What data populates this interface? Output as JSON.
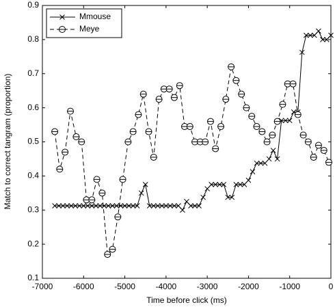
{
  "chart_data": {
    "type": "line",
    "x_label": "Time before click (ms)",
    "y_label": "Match to correct tangram (proportion)",
    "xlim": [
      -7000,
      0
    ],
    "xticks": [
      -7000,
      -6000,
      -5000,
      -4000,
      -3000,
      -2000,
      -1000,
      0
    ],
    "ylim": [
      0.1,
      0.9
    ],
    "yticks": [
      0.1,
      0.2,
      0.3,
      0.4,
      0.5,
      0.6,
      0.7,
      0.8,
      0.9
    ],
    "grid": false,
    "legend": "upper left",
    "series": [
      {
        "name": "Mmouse",
        "color": "#000000",
        "marker": "x",
        "dash": "solid",
        "x": [
          -6700,
          -6600,
          -6500,
          -6400,
          -6300,
          -6200,
          -6100,
          -6000,
          -5900,
          -5800,
          -5700,
          -5600,
          -5500,
          -5400,
          -5300,
          -5200,
          -5100,
          -5000,
          -4900,
          -4800,
          -4700,
          -4600,
          -4500,
          -4400,
          -4300,
          -4200,
          -4100,
          -4000,
          -3900,
          -3800,
          -3700,
          -3600,
          -3500,
          -3400,
          -3300,
          -3200,
          -3100,
          -3000,
          -2900,
          -2800,
          -2700,
          -2600,
          -2500,
          -2400,
          -2300,
          -2200,
          -2100,
          -2000,
          -1900,
          -1800,
          -1700,
          -1600,
          -1500,
          -1400,
          -1300,
          -1200,
          -1100,
          -1000,
          -900,
          -800,
          -700,
          -600,
          -500,
          -400,
          -300,
          -200,
          -100,
          0
        ],
        "values": [
          0.3125,
          0.3125,
          0.3125,
          0.3125,
          0.3125,
          0.3125,
          0.3125,
          0.3125,
          0.3125,
          0.3125,
          0.3125,
          0.3125,
          0.3125,
          0.3125,
          0.3125,
          0.3125,
          0.3125,
          0.3125,
          0.3125,
          0.3125,
          0.3125,
          0.35,
          0.375,
          0.3125,
          0.3125,
          0.3125,
          0.3125,
          0.3125,
          0.3125,
          0.3125,
          0.3125,
          0.3,
          0.325,
          0.3125,
          0.3125,
          0.3125,
          0.3375,
          0.3625,
          0.375,
          0.375,
          0.375,
          0.375,
          0.3375,
          0.3375,
          0.375,
          0.375,
          0.375,
          0.3875,
          0.4125,
          0.4375,
          0.4375,
          0.4375,
          0.45,
          0.475,
          0.45,
          0.5625,
          0.5625,
          0.5625,
          0.5875,
          0.5875,
          0.7625,
          0.8125,
          0.8125,
          0.8125,
          0.825,
          0.8,
          0.8,
          0.8125
        ]
      },
      {
        "name": "Meye",
        "color": "#000000",
        "marker": "o",
        "dash": "dashed",
        "x": [
          -6700,
          -6580,
          -6450,
          -6320,
          -6180,
          -6050,
          -5930,
          -5800,
          -5680,
          -5550,
          -5420,
          -5300,
          -5170,
          -5050,
          -4920,
          -4800,
          -4670,
          -4550,
          -4420,
          -4300,
          -4170,
          -4050,
          -3920,
          -3800,
          -3670,
          -3550,
          -3420,
          -3300,
          -3170,
          -3050,
          -2920,
          -2800,
          -2670,
          -2550,
          -2420,
          -2300,
          -2170,
          -2050,
          -1920,
          -1800,
          -1670,
          -1550,
          -1420,
          -1300,
          -1170,
          -1050,
          -920,
          -800,
          -670,
          -550,
          -420,
          -300,
          -170,
          -50
        ],
        "values": [
          0.53,
          0.42,
          0.47,
          0.59,
          0.515,
          0.5,
          0.33,
          0.33,
          0.39,
          0.35,
          0.17,
          0.185,
          0.28,
          0.39,
          0.5,
          0.53,
          0.58,
          0.64,
          0.53,
          0.455,
          0.625,
          0.655,
          0.655,
          0.63,
          0.665,
          0.545,
          0.545,
          0.5,
          0.5,
          0.5,
          0.56,
          0.48,
          0.545,
          0.625,
          0.72,
          0.68,
          0.64,
          0.6,
          0.575,
          0.545,
          0.53,
          0.5,
          0.52,
          0.56,
          0.61,
          0.67,
          0.67,
          0.58,
          0.52,
          0.5,
          0.455,
          0.49,
          0.475,
          0.44
        ]
      }
    ]
  }
}
